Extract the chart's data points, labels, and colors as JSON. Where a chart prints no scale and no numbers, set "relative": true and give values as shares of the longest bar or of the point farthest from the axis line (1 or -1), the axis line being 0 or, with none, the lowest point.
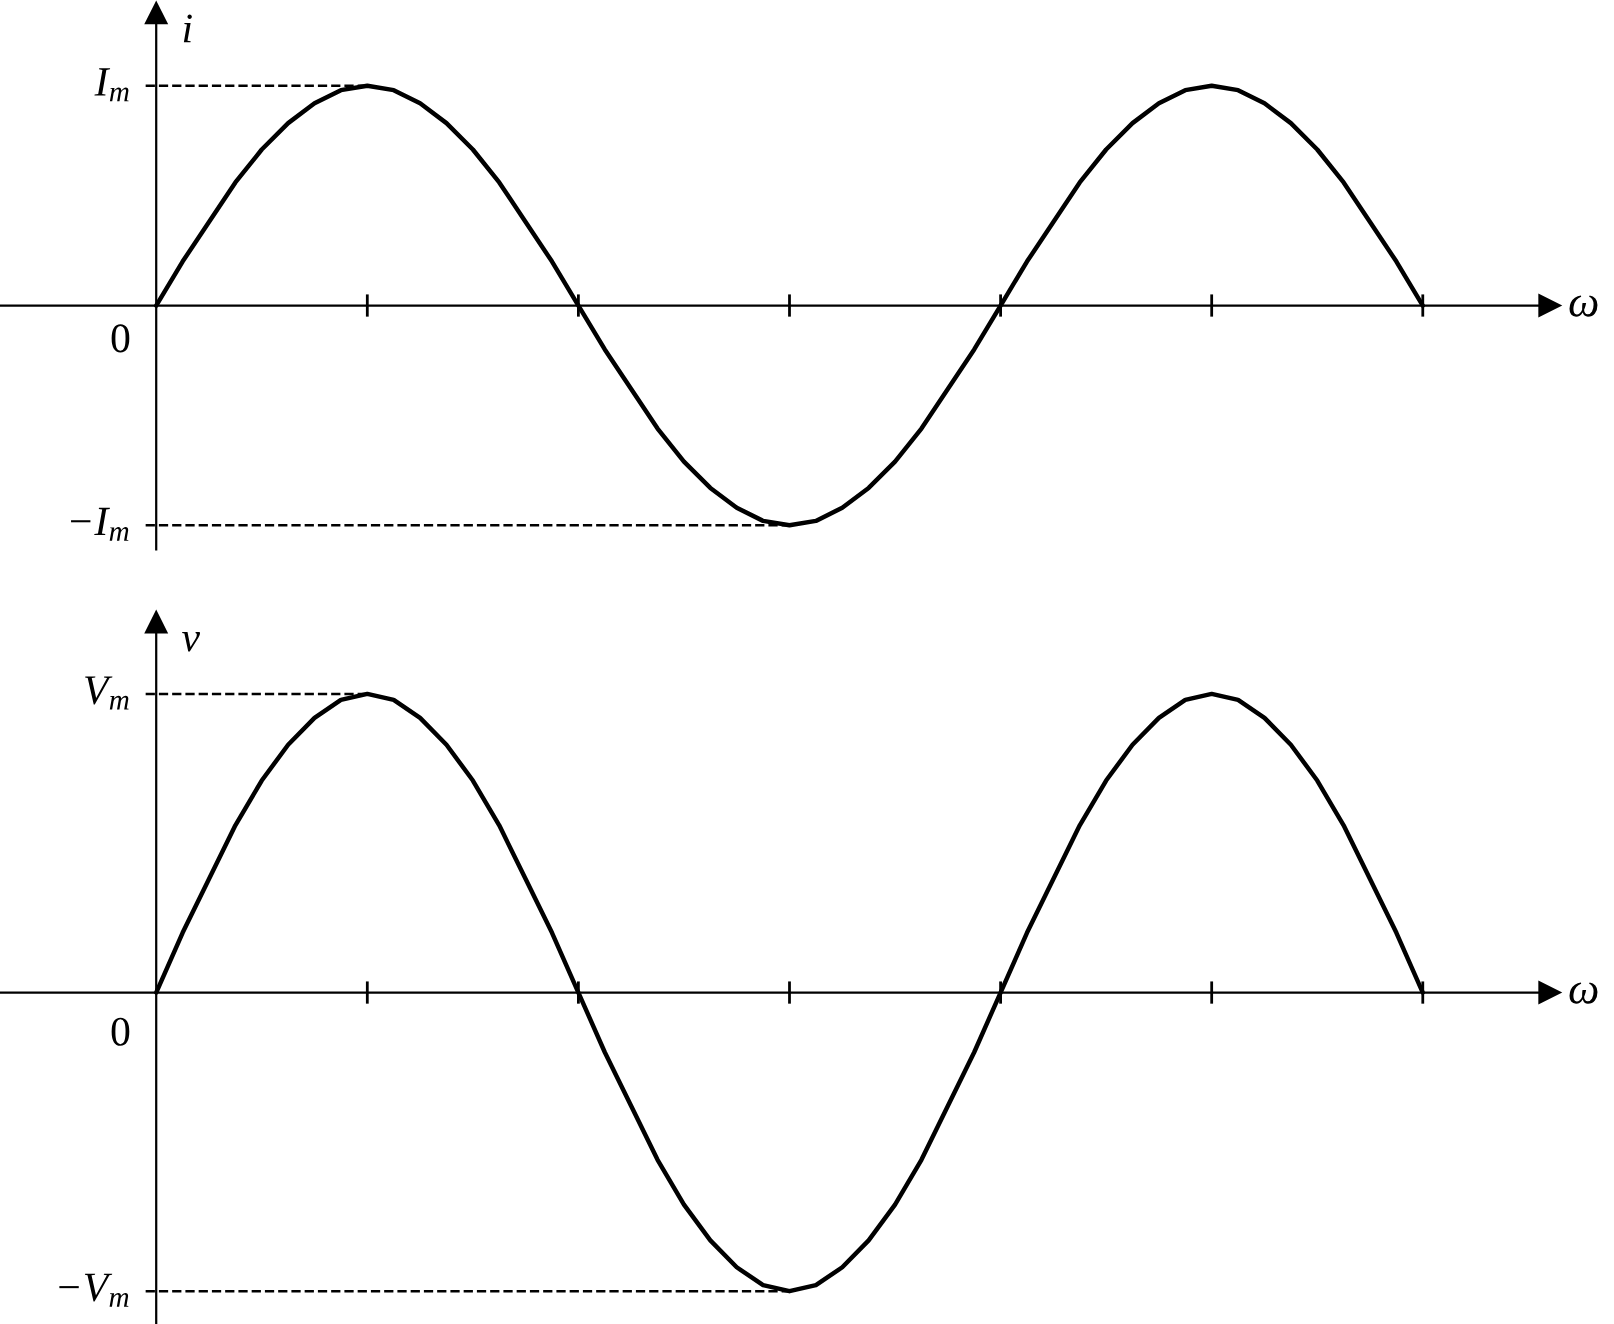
{
  "chart_data": [
    {
      "type": "line",
      "ylabel": "i",
      "xlabel": "ω",
      "relative": true,
      "annotations": [
        "0"
      ],
      "categories": [
        null,
        null,
        null,
        null,
        null,
        null,
        null,
        null,
        null,
        null,
        null,
        null,
        null,
        null,
        null,
        null,
        null,
        null,
        null,
        null,
        null,
        null,
        null,
        null,
        null,
        null,
        null,
        null,
        null,
        null,
        null,
        null,
        null,
        null,
        null,
        null,
        null,
        null,
        null,
        null,
        null,
        null,
        null,
        null,
        null,
        null,
        null,
        null,
        null
      ],
      "series": [
        {
          "color": "#000000",
          "values": [
            0,
            0.2,
            0.38,
            0.56,
            0.71,
            0.83,
            0.92,
            0.98,
            1,
            0.98,
            0.92,
            0.83,
            0.71,
            0.56,
            0.38,
            0.2,
            0,
            -0.2,
            -0.38,
            -0.56,
            -0.71,
            -0.83,
            -0.92,
            -0.98,
            -1,
            -0.98,
            -0.92,
            -0.83,
            -0.71,
            -0.56,
            -0.38,
            -0.2,
            0,
            0.2,
            0.38,
            0.56,
            0.71,
            0.83,
            0.92,
            0.98,
            1,
            0.98,
            0.92,
            0.83,
            0.71,
            0.56,
            0.38,
            0.2,
            0
          ]
        }
      ],
      "ref_lines": [
        {
          "axis": "y",
          "value": 1,
          "label": "I$_{m}$",
          "line_style": "dashed"
        },
        {
          "axis": "y",
          "value": -1,
          "label": "−I$_{m}$",
          "line_style": "dashed"
        }
      ],
      "grid": false,
      "legend": false,
      "marker": "none",
      "line_style": "solid"
    },
    {
      "type": "line",
      "ylabel": "v",
      "xlabel": "ω",
      "relative": true,
      "annotations": [
        "0"
      ],
      "categories": [
        null,
        null,
        null,
        null,
        null,
        null,
        null,
        null,
        null,
        null,
        null,
        null,
        null,
        null,
        null,
        null,
        null,
        null,
        null,
        null,
        null,
        null,
        null,
        null,
        null,
        null,
        null,
        null,
        null,
        null,
        null,
        null,
        null,
        null,
        null,
        null,
        null,
        null,
        null,
        null,
        null,
        null,
        null,
        null,
        null,
        null,
        null,
        null,
        null
      ],
      "series": [
        {
          "color": "#000000",
          "values": [
            0,
            0.2,
            0.38,
            0.56,
            0.71,
            0.83,
            0.92,
            0.98,
            1,
            0.98,
            0.92,
            0.83,
            0.71,
            0.56,
            0.38,
            0.2,
            0,
            -0.2,
            -0.38,
            -0.56,
            -0.71,
            -0.83,
            -0.92,
            -0.98,
            -1,
            -0.98,
            -0.92,
            -0.83,
            -0.71,
            -0.56,
            -0.38,
            -0.2,
            0,
            0.2,
            0.38,
            0.56,
            0.71,
            0.83,
            0.92,
            0.98,
            1,
            0.98,
            0.92,
            0.83,
            0.71,
            0.56,
            0.38,
            0.2,
            0
          ]
        }
      ],
      "ref_lines": [
        {
          "axis": "y",
          "value": 1,
          "label": "V$_{m}$",
          "line_style": "dashed"
        },
        {
          "axis": "y",
          "value": -1,
          "label": "−V$_{m}$",
          "line_style": "dashed"
        }
      ],
      "grid": false,
      "legend": false,
      "marker": "none",
      "line_style": "solid"
    }
  ]
}
